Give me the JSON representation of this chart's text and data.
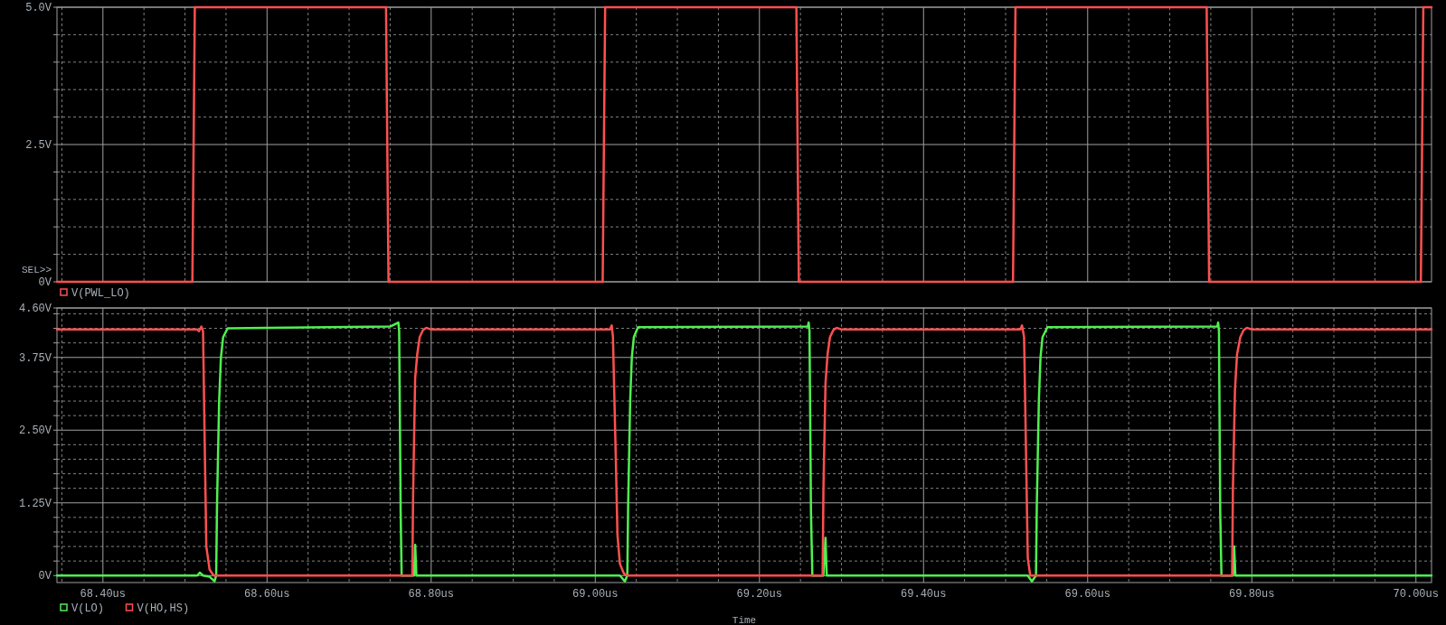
{
  "chart_data": [
    {
      "type": "line",
      "xlim": [
        68.344,
        70.019
      ],
      "ylim": [
        0,
        5
      ],
      "tick_labels": "y",
      "grid": true,
      "legend": "bottom left",
      "annotations": [
        "SEL>>"
      ],
      "yticks": [
        {
          "value": 0,
          "label": "0V"
        },
        {
          "value": 0.5,
          "label": null
        },
        {
          "value": 1,
          "label": null
        },
        {
          "value": 1.5,
          "label": null
        },
        {
          "value": 2,
          "label": null
        },
        {
          "value": 2.5,
          "label": "2.5V"
        },
        {
          "value": 3,
          "label": null
        },
        {
          "value": 3.5,
          "label": null
        },
        {
          "value": 4,
          "label": null
        },
        {
          "value": 4.5,
          "label": null
        },
        {
          "value": 5,
          "label": "5.0V"
        }
      ],
      "series": [
        {
          "name": "V(PWL_LO)",
          "color": "#ff5050",
          "x": [
            68.344,
            68.509,
            68.512,
            68.745,
            68.748,
            69.009,
            69.012,
            69.245,
            69.248,
            69.509,
            69.512,
            69.745,
            69.748,
            70.006,
            70.009,
            70.019
          ],
          "values": [
            0,
            0,
            5,
            5,
            0,
            0,
            5,
            5,
            0,
            0,
            5,
            5,
            0,
            0,
            5,
            5
          ]
        }
      ]
    },
    {
      "type": "line",
      "xlim": [
        68.344,
        70.019
      ],
      "ylim": [
        -0.12,
        4.6
      ],
      "xlabel": "Time",
      "grid": true,
      "legend": "bottom left",
      "xticks": [
        {
          "value": 68.35,
          "label": null
        },
        {
          "value": 68.4,
          "label": "68.40us"
        },
        {
          "value": 68.45,
          "label": null
        },
        {
          "value": 68.5,
          "label": null
        },
        {
          "value": 68.55,
          "label": null
        },
        {
          "value": 68.6,
          "label": "68.60us"
        },
        {
          "value": 68.65,
          "label": null
        },
        {
          "value": 68.7,
          "label": null
        },
        {
          "value": 68.75,
          "label": null
        },
        {
          "value": 68.8,
          "label": "68.80us"
        },
        {
          "value": 68.85,
          "label": null
        },
        {
          "value": 68.9,
          "label": null
        },
        {
          "value": 68.95,
          "label": null
        },
        {
          "value": 69.0,
          "label": "69.00us"
        },
        {
          "value": 69.05,
          "label": null
        },
        {
          "value": 69.1,
          "label": null
        },
        {
          "value": 69.15,
          "label": null
        },
        {
          "value": 69.2,
          "label": "69.20us"
        },
        {
          "value": 69.25,
          "label": null
        },
        {
          "value": 69.3,
          "label": null
        },
        {
          "value": 69.35,
          "label": null
        },
        {
          "value": 69.4,
          "label": "69.40us"
        },
        {
          "value": 69.45,
          "label": null
        },
        {
          "value": 69.5,
          "label": null
        },
        {
          "value": 69.55,
          "label": null
        },
        {
          "value": 69.6,
          "label": "69.60us"
        },
        {
          "value": 69.65,
          "label": null
        },
        {
          "value": 69.7,
          "label": null
        },
        {
          "value": 69.75,
          "label": null
        },
        {
          "value": 69.8,
          "label": "69.80us"
        },
        {
          "value": 69.85,
          "label": null
        },
        {
          "value": 69.9,
          "label": null
        },
        {
          "value": 69.95,
          "label": null
        },
        {
          "value": 70.0,
          "label": "70.00us"
        }
      ],
      "yticks": [
        {
          "value": 0,
          "label": "0V"
        },
        {
          "value": 0.25,
          "label": null
        },
        {
          "value": 0.5,
          "label": null
        },
        {
          "value": 0.75,
          "label": null
        },
        {
          "value": 1,
          "label": null
        },
        {
          "value": 1.25,
          "label": "1.25V"
        },
        {
          "value": 1.5,
          "label": null
        },
        {
          "value": 1.75,
          "label": null
        },
        {
          "value": 2,
          "label": null
        },
        {
          "value": 2.25,
          "label": null
        },
        {
          "value": 2.5,
          "label": "2.50V"
        },
        {
          "value": 2.75,
          "label": null
        },
        {
          "value": 3,
          "label": null
        },
        {
          "value": 3.25,
          "label": null
        },
        {
          "value": 3.5,
          "label": null
        },
        {
          "value": 3.75,
          "label": "3.75V"
        },
        {
          "value": 4,
          "label": null
        },
        {
          "value": 4.25,
          "label": null
        },
        {
          "value": 4.5,
          "label": null
        },
        {
          "value": 4.6,
          "label": "4.60V"
        }
      ],
      "series": [
        {
          "name": "V(LO)",
          "color": "#50f050",
          "x": [
            68.344,
            68.515,
            68.518,
            68.522,
            68.53,
            68.536,
            68.538,
            68.539,
            68.5416,
            68.5438,
            68.5465,
            68.552,
            68.6,
            68.75,
            68.76,
            68.761,
            68.7628,
            68.764,
            68.779,
            68.7805,
            68.782,
            69.03,
            69.036,
            69.039,
            69.04,
            69.0425,
            69.0445,
            69.047,
            69.052,
            69.259,
            69.26,
            69.261,
            69.2628,
            69.2645,
            69.278,
            69.2805,
            69.282,
            69.527,
            69.532,
            69.537,
            69.538,
            69.5405,
            69.5425,
            69.545,
            69.551,
            69.758,
            69.759,
            69.76,
            69.7615,
            69.763,
            69.777,
            69.7785,
            69.78,
            70.019
          ],
          "values": [
            0,
            0,
            0.05,
            0,
            -0.02,
            -0.1,
            0,
            1.2,
            3.0,
            3.75,
            4.1,
            4.25,
            4.26,
            4.28,
            4.35,
            4.2,
            1.1,
            0,
            0,
            0.53,
            0,
            0,
            -0.1,
            0,
            1.2,
            3.0,
            3.75,
            4.1,
            4.27,
            4.28,
            4.35,
            4.2,
            1.1,
            0,
            0,
            0.65,
            0,
            0,
            -0.1,
            0,
            1.2,
            3.0,
            3.75,
            4.1,
            4.27,
            4.28,
            4.35,
            4.2,
            1.1,
            0,
            0,
            0.5,
            0,
            0
          ]
        },
        {
          "name": "V(HO,HS)",
          "color": "#ff5050",
          "x": [
            68.344,
            68.515,
            68.517,
            68.52,
            68.522,
            68.524,
            68.526,
            68.53,
            68.535,
            68.777,
            68.778,
            68.7805,
            68.783,
            68.786,
            68.79,
            68.794,
            68.8,
            69.018,
            69.02,
            69.0215,
            69.025,
            69.027,
            69.03,
            69.035,
            69.04,
            69.277,
            69.278,
            69.2805,
            69.283,
            69.286,
            69.29,
            69.294,
            69.3,
            69.518,
            69.52,
            69.5225,
            69.525,
            69.527,
            69.53,
            69.776,
            69.777,
            69.7795,
            69.782,
            69.786,
            69.79,
            69.794,
            69.8,
            70.019
          ],
          "values": [
            4.23,
            4.23,
            4.2,
            4.28,
            4.2,
            2.3,
            0.5,
            0.1,
            0,
            0,
            1.4,
            3.4,
            3.8,
            4.1,
            4.22,
            4.26,
            4.23,
            4.23,
            4.3,
            4.1,
            2.0,
            0.7,
            0.2,
            0.03,
            0,
            0,
            1.5,
            3.3,
            3.8,
            4.1,
            4.22,
            4.26,
            4.23,
            4.23,
            4.3,
            4.1,
            2.0,
            0.3,
            0,
            0,
            1.5,
            3.2,
            3.8,
            4.1,
            4.22,
            4.26,
            4.23,
            4.23
          ]
        }
      ]
    }
  ]
}
